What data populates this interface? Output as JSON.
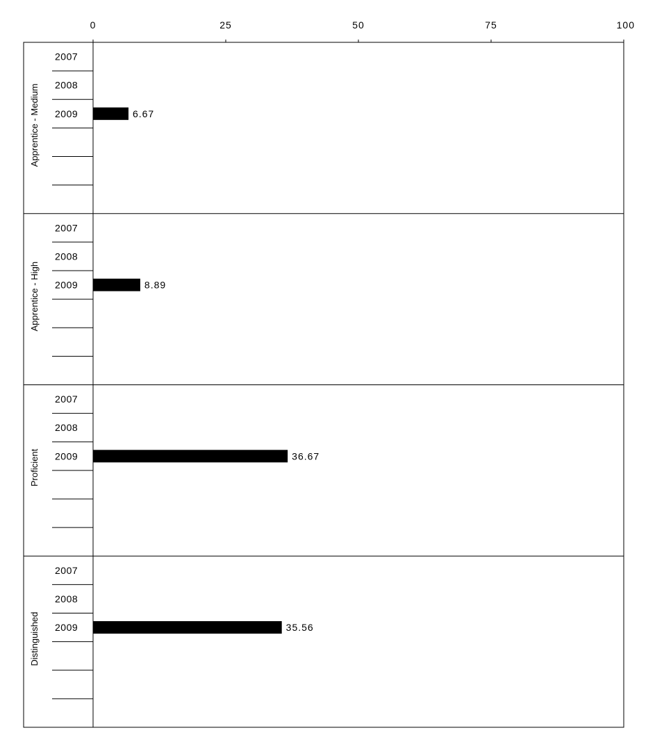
{
  "chart_data": {
    "type": "bar",
    "orientation": "horizontal",
    "x_axis": {
      "position": "top",
      "range": [
        0,
        100
      ],
      "ticks": [
        0,
        25,
        50,
        75,
        100
      ],
      "tick_labels": [
        "0",
        "25",
        "50",
        "75",
        "100"
      ]
    },
    "groups": [
      {
        "label": "Apprentice - Medium",
        "rows": [
          {
            "label": "2007",
            "value": null
          },
          {
            "label": "2008",
            "value": null
          },
          {
            "label": "2009",
            "value": 6.67,
            "value_label": "6.67"
          },
          {
            "label": "",
            "value": null
          },
          {
            "label": "",
            "value": null
          },
          {
            "label": "",
            "value": null
          }
        ]
      },
      {
        "label": "Apprentice - High",
        "rows": [
          {
            "label": "2007",
            "value": null
          },
          {
            "label": "2008",
            "value": null
          },
          {
            "label": "2009",
            "value": 8.89,
            "value_label": "8.89"
          },
          {
            "label": "",
            "value": null
          },
          {
            "label": "",
            "value": null
          },
          {
            "label": "",
            "value": null
          }
        ]
      },
      {
        "label": "Proficient",
        "rows": [
          {
            "label": "2007",
            "value": null
          },
          {
            "label": "2008",
            "value": null
          },
          {
            "label": "2009",
            "value": 36.67,
            "value_label": "36.67"
          },
          {
            "label": "",
            "value": null
          },
          {
            "label": "",
            "value": null
          },
          {
            "label": "",
            "value": null
          }
        ]
      },
      {
        "label": "Distinguished",
        "rows": [
          {
            "label": "2007",
            "value": null
          },
          {
            "label": "2008",
            "value": null
          },
          {
            "label": "2009",
            "value": 35.56,
            "value_label": "35.56"
          },
          {
            "label": "",
            "value": null
          },
          {
            "label": "",
            "value": null
          },
          {
            "label": "",
            "value": null
          }
        ]
      }
    ],
    "bar_color": "#000000",
    "grid": false,
    "legend": "none"
  }
}
